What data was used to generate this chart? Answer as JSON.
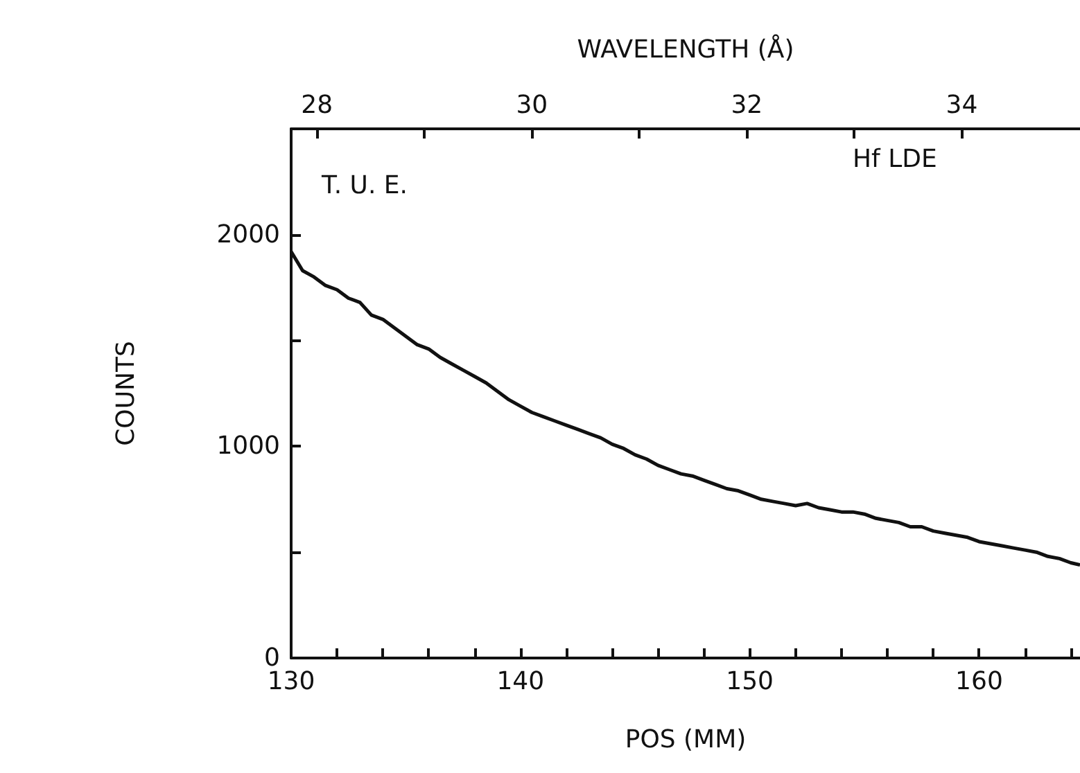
{
  "chart_data": {
    "type": "line",
    "xlabel": "POS (MM)",
    "ylabel": "COUNTS",
    "x2label": "WAVELENGTH (Å)",
    "annotations": [
      "T. U. E.",
      "Hf LDE"
    ],
    "xlim": [
      130,
      164.4
    ],
    "xticks": [
      130,
      {
        "value": 132,
        "label": null
      },
      {
        "value": 134,
        "label": null
      },
      {
        "value": 136,
        "label": null
      },
      {
        "value": 138,
        "label": null
      },
      140,
      {
        "value": 142,
        "label": null
      },
      {
        "value": 144,
        "label": null
      },
      {
        "value": 146,
        "label": null
      },
      {
        "value": 148,
        "label": null
      },
      150,
      {
        "value": 152,
        "label": null
      },
      {
        "value": 154,
        "label": null
      },
      {
        "value": 156,
        "label": null
      },
      {
        "value": 158,
        "label": null
      },
      160,
      {
        "value": 162,
        "label": null
      },
      {
        "value": 164,
        "label": null
      }
    ],
    "x2lim": [
      27.76,
      35.1
    ],
    "x2ticks": [
      28,
      {
        "value": 29,
        "label": null
      },
      30,
      {
        "value": 31,
        "label": null
      },
      32,
      {
        "value": 33,
        "label": null
      },
      34
    ],
    "ylim": [
      0,
      2500
    ],
    "yticks": [
      0,
      {
        "value": 500,
        "label": null
      },
      1000,
      {
        "value": 1500,
        "label": null
      },
      2000
    ],
    "marker": "none",
    "line_style": "solid",
    "series": [
      {
        "color": "#111111",
        "x": [
          130,
          130.5,
          131,
          131.5,
          132,
          132.5,
          133,
          133.5,
          134,
          134.5,
          135,
          135.5,
          136,
          136.5,
          137,
          137.5,
          138,
          138.5,
          139,
          139.5,
          140,
          140.5,
          141,
          141.5,
          142,
          142.5,
          143,
          143.5,
          144,
          144.5,
          145,
          145.5,
          146,
          146.5,
          147,
          147.5,
          148,
          148.5,
          149,
          149.5,
          150,
          150.5,
          151,
          151.5,
          152,
          152.5,
          153,
          153.5,
          154,
          154.5,
          155,
          155.5,
          156,
          156.5,
          157,
          157.5,
          158,
          158.5,
          159,
          159.5,
          160,
          160.5,
          161,
          161.5,
          162,
          162.5,
          163,
          163.5,
          164,
          164.4
        ],
        "values": [
          1920,
          1830,
          1800,
          1760,
          1740,
          1700,
          1680,
          1620,
          1600,
          1560,
          1520,
          1480,
          1460,
          1420,
          1390,
          1360,
          1330,
          1300,
          1260,
          1220,
          1190,
          1160,
          1140,
          1120,
          1100,
          1080,
          1060,
          1040,
          1010,
          990,
          960,
          940,
          910,
          890,
          870,
          860,
          840,
          820,
          800,
          790,
          770,
          750,
          740,
          730,
          720,
          730,
          710,
          700,
          690,
          690,
          680,
          660,
          650,
          640,
          620,
          620,
          600,
          590,
          580,
          570,
          550,
          540,
          530,
          520,
          510,
          500,
          480,
          470,
          450,
          440
        ]
      }
    ]
  }
}
